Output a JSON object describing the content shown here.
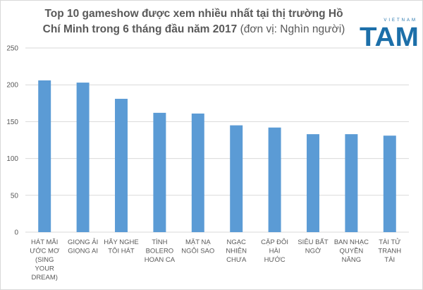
{
  "chart_title": "Top 10 gameshow được xem nhiều nhất tại thị trường Hồ Chí Minh trong 6 tháng đầu năm 2017",
  "chart_unit": "(đơn vị: Nghìn người)",
  "logo": {
    "top_text": "VIETNAM",
    "main_text": "TAM",
    "color": "#1c6fa9"
  },
  "colors": {
    "bar": "#5b9bd5",
    "grid": "#d9d9d9",
    "text": "#595959"
  },
  "chart_data": {
    "type": "bar",
    "title": "Top 10 gameshow được xem nhiều nhất tại thị trường Hồ Chí Minh trong 6 tháng đầu năm 2017 (đơn vị: Nghìn người)",
    "categories": [
      [
        "HÁT MÃI",
        "ƯỚC MƠ",
        "(SING",
        "YOUR",
        "DREAM)"
      ],
      [
        "GIỌNG ẢI",
        "GIỌNG AI"
      ],
      [
        "HÃY NGHE",
        "TÔI HÁT"
      ],
      [
        "TÌNH",
        "BOLERO",
        "HOAN CA"
      ],
      [
        "MẶT NẠ",
        "NGÔI SAO"
      ],
      [
        "NGẠC",
        "NHIÊN",
        "CHƯA"
      ],
      [
        "CẶP ĐÔI",
        "HÀI",
        "HƯỚC"
      ],
      [
        "SIÊU BẤT",
        "NGỜ"
      ],
      [
        "BAN NHẠC",
        "QUYỀN",
        "NĂNG"
      ],
      [
        "TÀI TỬ",
        "TRANH",
        "TÀI"
      ]
    ],
    "values": [
      206,
      203,
      181,
      162,
      161,
      145,
      142,
      133,
      133,
      131
    ],
    "ylim": [
      0,
      250
    ],
    "yticks": [
      0,
      50,
      100,
      150,
      200,
      250
    ],
    "grid": true,
    "legend": "none"
  }
}
